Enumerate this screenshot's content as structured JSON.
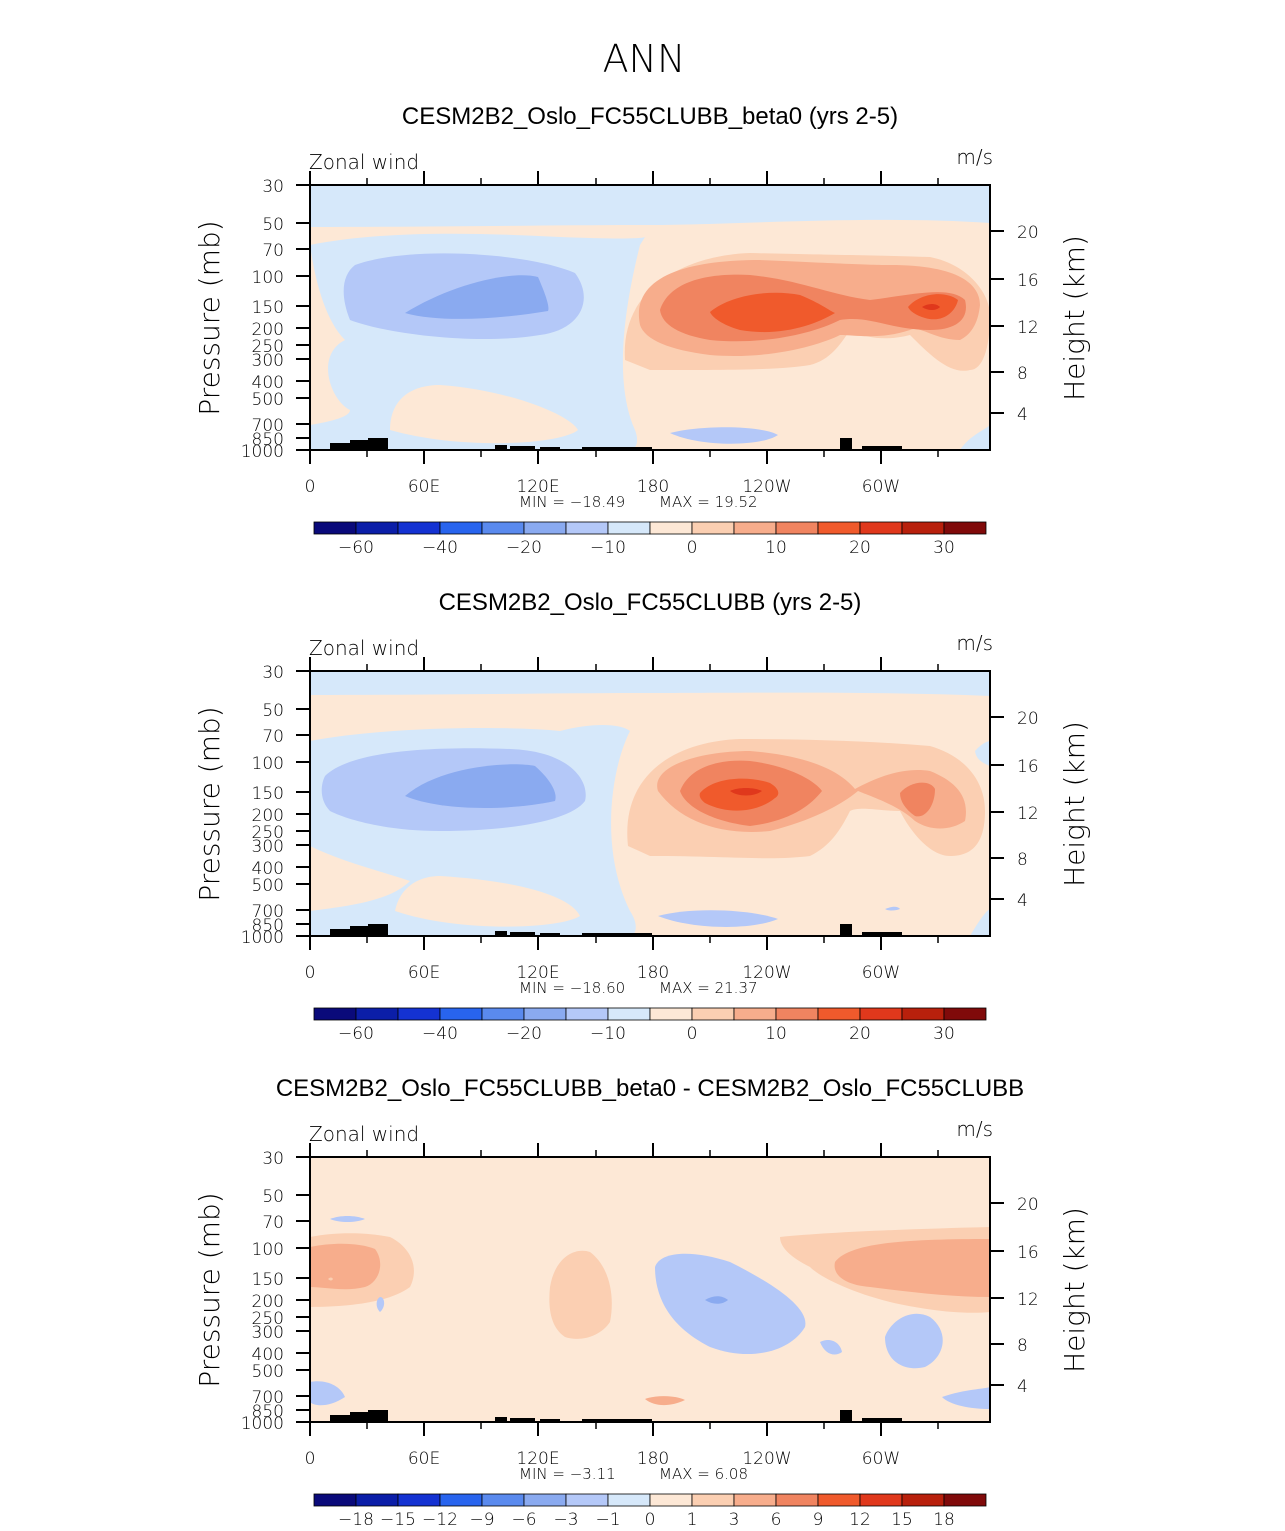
{
  "page_title": "ANN",
  "colorbar_colors": [
    "#0a0a7a",
    "#0b1ea8",
    "#1432d2",
    "#2864ee",
    "#5a8aee",
    "#8aaaf0",
    "#b4c8f8",
    "#d6e8fa",
    "#fde8d6",
    "#fbcfb2",
    "#f7ad8c",
    "#f08460",
    "#f05a2c",
    "#e0381c",
    "#b8200c",
    "#800a0a"
  ],
  "chart_data": [
    {
      "type": "heatmap",
      "title": "CESM2B2_Oslo_FC55CLUBB_beta0 (yrs 2-5)",
      "variable_label": "Zonal wind",
      "units": "m/s",
      "ylabel": "Pressure (mb)",
      "ylabel_right": "Height (km)",
      "x_tick_labels": [
        "0",
        "60E",
        "120E",
        "180",
        "120W",
        "60W"
      ],
      "y_tick_labels": [
        "30",
        "50",
        "70",
        "100",
        "150",
        "200",
        "250",
        "300",
        "400",
        "500",
        "700",
        "850",
        "1000"
      ],
      "y_ticks_right": [
        "20",
        "16",
        "12",
        "8",
        "4"
      ],
      "min_label": "MIN = −18.49",
      "max_label": "MAX = 19.52",
      "min": -18.49,
      "max": 19.52,
      "colorbar_labels": [
        "−60",
        "−40",
        "−20",
        "−10",
        "0",
        "10",
        "20",
        "30"
      ],
      "grid": false
    },
    {
      "type": "heatmap",
      "title": "CESM2B2_Oslo_FC55CLUBB (yrs 2-5)",
      "variable_label": "Zonal wind",
      "units": "m/s",
      "ylabel": "Pressure (mb)",
      "ylabel_right": "Height (km)",
      "x_tick_labels": [
        "0",
        "60E",
        "120E",
        "180",
        "120W",
        "60W"
      ],
      "y_tick_labels": [
        "30",
        "50",
        "70",
        "100",
        "150",
        "200",
        "250",
        "300",
        "400",
        "500",
        "700",
        "850",
        "1000"
      ],
      "y_ticks_right": [
        "20",
        "16",
        "12",
        "8",
        "4"
      ],
      "min_label": "MIN = −18.60",
      "max_label": "MAX = 21.37",
      "min": -18.6,
      "max": 21.37,
      "colorbar_labels": [
        "−60",
        "−40",
        "−20",
        "−10",
        "0",
        "10",
        "20",
        "30"
      ],
      "grid": false
    },
    {
      "type": "heatmap",
      "title": "CESM2B2_Oslo_FC55CLUBB_beta0 - CESM2B2_Oslo_FC55CLUBB",
      "variable_label": "Zonal wind",
      "units": "m/s",
      "ylabel": "Pressure (mb)",
      "ylabel_right": "Height (km)",
      "x_tick_labels": [
        "0",
        "60E",
        "120E",
        "180",
        "120W",
        "60W"
      ],
      "y_tick_labels": [
        "30",
        "50",
        "70",
        "100",
        "150",
        "200",
        "250",
        "300",
        "400",
        "500",
        "700",
        "850",
        "1000"
      ],
      "y_ticks_right": [
        "20",
        "16",
        "12",
        "8",
        "4"
      ],
      "min_label": "MIN = −3.11",
      "max_label": "MAX = 6.08",
      "min": -3.11,
      "max": 6.08,
      "colorbar_labels": [
        "−18",
        "−15",
        "−12",
        "−9",
        "−6",
        "−3",
        "−1",
        "0",
        "1",
        "3",
        "6",
        "9",
        "12",
        "15",
        "18"
      ],
      "grid": false
    }
  ]
}
